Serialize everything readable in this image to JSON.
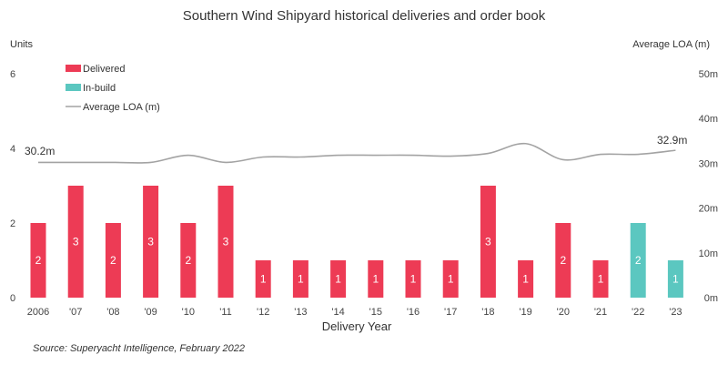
{
  "chart_data": {
    "type": "bar",
    "title": "Southern Wind Shipyard historical deliveries and order book",
    "ylabel": "Units",
    "y2label": "Average LOA (m)",
    "xlabel": "Delivery Year",
    "categories": [
      "2006",
      "'07",
      "'08",
      "'09",
      "'10",
      "'11",
      "'12",
      "'13",
      "'14",
      "'15",
      "'16",
      "'17",
      "'18",
      "'19",
      "'20",
      "'21",
      "'22",
      "'23"
    ],
    "ylim": [
      0,
      6
    ],
    "yticks": [
      0,
      2,
      4,
      6
    ],
    "y2lim": [
      0,
      50
    ],
    "y2ticks": [
      "0m",
      "10m",
      "20m",
      "30m",
      "40m",
      "50m"
    ],
    "y2tick_values": [
      0,
      10,
      20,
      30,
      40,
      50
    ],
    "series": [
      {
        "name": "Delivered",
        "color": "#ED3B55",
        "values": [
          2,
          3,
          2,
          3,
          2,
          3,
          1,
          1,
          1,
          1,
          1,
          1,
          3,
          1,
          2,
          1,
          null,
          null
        ]
      },
      {
        "name": "In-build",
        "color": "#5BC7C0",
        "values": [
          null,
          null,
          null,
          null,
          null,
          null,
          null,
          null,
          null,
          null,
          null,
          null,
          null,
          null,
          null,
          null,
          2,
          1
        ]
      },
      {
        "name": "Average LOA (m)",
        "color": "#A3A3A3",
        "type": "line",
        "axis": "right",
        "values": [
          30.2,
          30.2,
          30.2,
          30.2,
          31.8,
          30.2,
          31.4,
          31.4,
          31.8,
          31.8,
          31.8,
          31.6,
          32.2,
          34.4,
          30.8,
          32.0,
          32.0,
          32.9
        ]
      }
    ],
    "annotations": {
      "start": "30.2m",
      "end": "32.9m"
    },
    "legend": "top-left",
    "grid": false
  },
  "source": "Source: Superyacht Intelligence, February 2022"
}
